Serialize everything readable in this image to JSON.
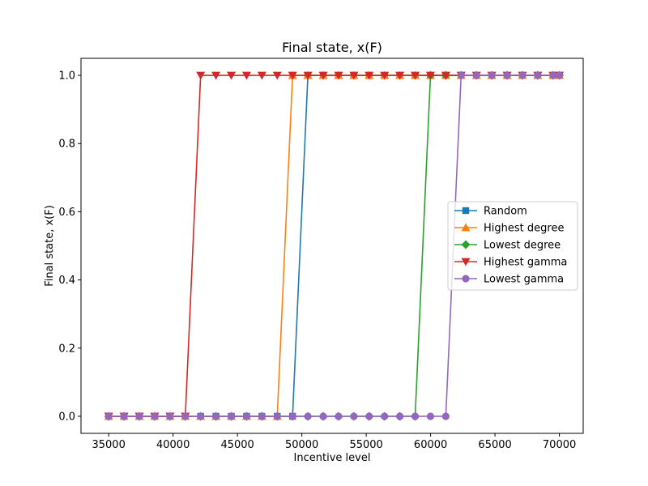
{
  "chart_data": {
    "type": "line",
    "title": "Final state, x(F)",
    "xlabel": "Incentive level",
    "ylabel": "Final state, x(F)",
    "xlim": [
      32850,
      71850
    ],
    "ylim": [
      -0.05,
      1.05
    ],
    "xticks": [
      35000,
      40000,
      45000,
      50000,
      55000,
      60000,
      65000,
      70000
    ],
    "yticks": [
      0.0,
      0.2,
      0.4,
      0.6,
      0.8,
      1.0
    ],
    "xtick_labels": [
      "35000",
      "40000",
      "45000",
      "50000",
      "55000",
      "60000",
      "65000",
      "70000"
    ],
    "ytick_labels": [
      "0.0",
      "0.2",
      "0.4",
      "0.6",
      "0.8",
      "1.0"
    ],
    "x": [
      35000,
      36190,
      37380,
      38570,
      39760,
      40950,
      42140,
      43330,
      44520,
      45710,
      46900,
      48090,
      49280,
      50470,
      51660,
      52850,
      54040,
      55230,
      56420,
      57610,
      58800,
      59990,
      61180,
      62370,
      63560,
      64750,
      65940,
      67130,
      68320,
      69510,
      70000
    ],
    "grid": false,
    "legend_position": "center-right",
    "series": [
      {
        "name": "Random",
        "color": "#1f77b4",
        "marker": "square",
        "values": [
          0,
          0,
          0,
          0,
          0,
          0,
          0,
          0,
          0,
          0,
          0,
          0,
          0,
          1,
          1,
          1,
          1,
          1,
          1,
          1,
          1,
          1,
          1,
          1,
          1,
          1,
          1,
          1,
          1,
          1,
          1
        ]
      },
      {
        "name": "Highest degree",
        "color": "#ff7f0e",
        "marker": "triangle-up",
        "values": [
          0,
          0,
          0,
          0,
          0,
          0,
          0,
          0,
          0,
          0,
          0,
          0,
          1,
          1,
          1,
          1,
          1,
          1,
          1,
          1,
          1,
          1,
          1,
          1,
          1,
          1,
          1,
          1,
          1,
          1,
          1
        ]
      },
      {
        "name": "Lowest degree",
        "color": "#2ca02c",
        "marker": "diamond",
        "values": [
          0,
          0,
          0,
          0,
          0,
          0,
          0,
          0,
          0,
          0,
          0,
          0,
          0,
          0,
          0,
          0,
          0,
          0,
          0,
          0,
          0,
          1,
          1,
          1,
          1,
          1,
          1,
          1,
          1,
          1,
          1
        ]
      },
      {
        "name": "Highest gamma",
        "color": "#d62728",
        "marker": "triangle-down",
        "values": [
          0,
          0,
          0,
          0,
          0,
          0,
          1,
          1,
          1,
          1,
          1,
          1,
          1,
          1,
          1,
          1,
          1,
          1,
          1,
          1,
          1,
          1,
          1,
          1,
          1,
          1,
          1,
          1,
          1,
          1,
          1
        ]
      },
      {
        "name": "Lowest gamma",
        "color": "#9467bd",
        "marker": "circle",
        "values": [
          0,
          0,
          0,
          0,
          0,
          0,
          0,
          0,
          0,
          0,
          0,
          0,
          0,
          0,
          0,
          0,
          0,
          0,
          0,
          0,
          0,
          0,
          0,
          1,
          1,
          1,
          1,
          1,
          1,
          1,
          1
        ]
      }
    ]
  }
}
